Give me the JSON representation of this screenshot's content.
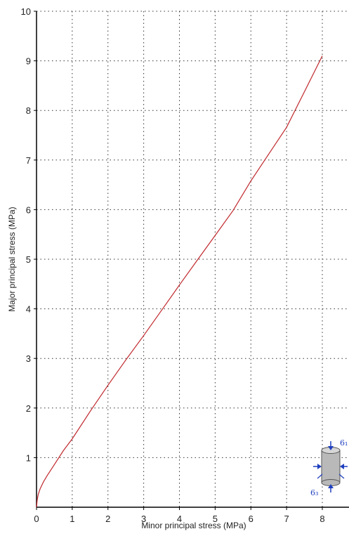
{
  "chart_data": {
    "type": "line",
    "xlabel": "Minor principal stress (MPa)",
    "ylabel": "Major principal stress (MPa)",
    "xlim": [
      0,
      8.8
    ],
    "ylim": [
      0,
      10
    ],
    "x_ticks": [
      0,
      1,
      2,
      3,
      4,
      5,
      6,
      7,
      8
    ],
    "y_ticks": [
      1,
      2,
      3,
      4,
      5,
      6,
      7,
      8,
      9,
      10
    ],
    "grid": "dotted",
    "series": [
      {
        "color": "#c0282d",
        "x": [
          0,
          0.02,
          0.05,
          0.1,
          0.2,
          0.3,
          0.5,
          0.75,
          1,
          1.5,
          2,
          2.5,
          3,
          3.5,
          4,
          4.5,
          5,
          5.5,
          6,
          6.5,
          7,
          7.5,
          8
        ],
        "y": [
          0,
          0.15,
          0.26,
          0.37,
          0.52,
          0.64,
          0.86,
          1.14,
          1.38,
          1.93,
          2.46,
          2.97,
          3.46,
          3.97,
          4.48,
          4.98,
          5.48,
          5.98,
          6.58,
          7.12,
          7.66,
          8.38,
          9.1
        ]
      }
    ]
  },
  "inset": {
    "label_major": "6₁",
    "label_minor": "6₃"
  }
}
